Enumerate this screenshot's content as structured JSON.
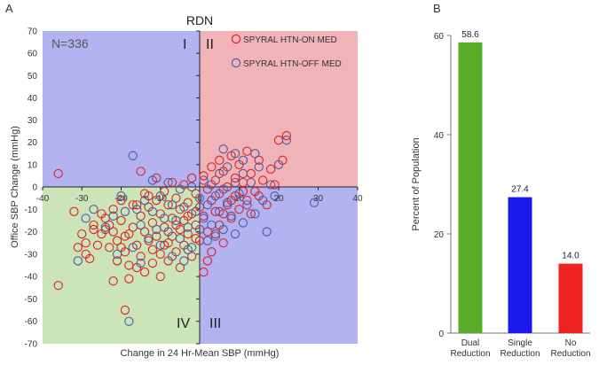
{
  "panels": {
    "a_label": "A",
    "b_label": "B"
  },
  "chart_data": [
    {
      "type": "scatter",
      "title": "RDN",
      "xlabel": "Change in 24 Hr-Mean SBP (mmHg)",
      "ylabel": "Office SBP Change (mmHg)",
      "xlim": [
        -40,
        40
      ],
      "ylim": [
        -70,
        70
      ],
      "xticks": [
        -40,
        -30,
        -20,
        -10,
        0,
        10,
        20,
        30,
        40
      ],
      "yticks": [
        -70,
        -60,
        -50,
        -40,
        -30,
        -20,
        -10,
        0,
        10,
        20,
        30,
        40,
        50,
        60,
        70
      ],
      "xtick_labels": [
        "-40",
        "-30",
        "-20",
        "-10",
        "0",
        "10",
        "20",
        "30",
        "40"
      ],
      "ytick_labels": [
        "-70",
        "-60",
        "-50",
        "-40",
        "-30",
        "-20",
        "-10",
        "0",
        "10",
        "20",
        "30",
        "40",
        "50",
        "60",
        "70"
      ],
      "annotation_n": "N=336",
      "quadrants": [
        {
          "label": "I",
          "color": "#b3b3f2"
        },
        {
          "label": "II",
          "color": "#f0b3b8"
        },
        {
          "label": "III",
          "color": "#b3b3f2"
        },
        {
          "label": "IV",
          "color": "#cbe5b9"
        }
      ],
      "legend": {
        "position": "top-right"
      },
      "series": [
        {
          "name": "SPYRAL HTN-ON MED",
          "color": "#e02020",
          "points": [
            [
              -36,
              6
            ],
            [
              -36,
              -44
            ],
            [
              -32,
              -11
            ],
            [
              -30,
              -21
            ],
            [
              -29,
              -25
            ],
            [
              -29,
              -30
            ],
            [
              -28,
              -32
            ],
            [
              -27,
              -19
            ],
            [
              -26,
              -26
            ],
            [
              -25,
              -12
            ],
            [
              -25,
              -21
            ],
            [
              -24,
              -14
            ],
            [
              -23,
              -17
            ],
            [
              -23,
              -27
            ],
            [
              -22,
              -10
            ],
            [
              -22,
              -20
            ],
            [
              -21,
              -24
            ],
            [
              -21,
              -33
            ],
            [
              -20,
              -6
            ],
            [
              -20,
              -15
            ],
            [
              -19,
              -22
            ],
            [
              -19,
              -29
            ],
            [
              -18,
              -35
            ],
            [
              -18,
              -41
            ],
            [
              -17,
              -8
            ],
            [
              -17,
              -18
            ],
            [
              -16,
              -26
            ],
            [
              -16,
              -36
            ],
            [
              -15,
              7
            ],
            [
              -15,
              -13
            ],
            [
              -15,
              -31
            ],
            [
              -14,
              -3
            ],
            [
              -14,
              -20
            ],
            [
              -14,
              -38
            ],
            [
              -13,
              -9
            ],
            [
              -13,
              -24
            ],
            [
              -12,
              -16
            ],
            [
              -12,
              -28
            ],
            [
              -12,
              -34
            ],
            [
              -11,
              4
            ],
            [
              -11,
              -6
            ],
            [
              -11,
              -22
            ],
            [
              -10,
              -12
            ],
            [
              -10,
              -30
            ],
            [
              -10,
              -40
            ],
            [
              -9,
              -2
            ],
            [
              -9,
              -18
            ],
            [
              -8,
              -8
            ],
            [
              -8,
              -25
            ],
            [
              -8,
              -33
            ],
            [
              -7,
              2
            ],
            [
              -7,
              -14
            ],
            [
              -7,
              -22
            ],
            [
              -6,
              -5
            ],
            [
              -6,
              -29
            ],
            [
              -5,
              -10
            ],
            [
              -5,
              -19
            ],
            [
              -5,
              -36
            ],
            [
              -4,
              1
            ],
            [
              -4,
              -15
            ],
            [
              -4,
              -26
            ],
            [
              -3,
              -7
            ],
            [
              -3,
              -21
            ],
            [
              -2,
              4
            ],
            [
              -2,
              -12
            ],
            [
              -2,
              -31
            ],
            [
              -1,
              -3
            ],
            [
              -1,
              -17
            ],
            [
              0,
              -9
            ],
            [
              0,
              -24
            ],
            [
              1,
              5
            ],
            [
              1,
              -13
            ],
            [
              1,
              -38
            ],
            [
              2,
              -1
            ],
            [
              2,
              -20
            ],
            [
              3,
              9
            ],
            [
              3,
              -6
            ],
            [
              3,
              -29
            ],
            [
              4,
              3
            ],
            [
              4,
              -11
            ],
            [
              5,
              12
            ],
            [
              5,
              -3
            ],
            [
              5,
              -17
            ],
            [
              6,
              7
            ],
            [
              6,
              -25
            ],
            [
              7,
              0
            ],
            [
              7,
              -8
            ],
            [
              8,
              14
            ],
            [
              8,
              -14
            ],
            [
              9,
              4
            ],
            [
              9,
              -4
            ],
            [
              10,
              10
            ],
            [
              10,
              -10
            ],
            [
              11,
              2
            ],
            [
              12,
              -6
            ],
            [
              12,
              16
            ],
            [
              13,
              6
            ],
            [
              14,
              -2
            ],
            [
              15,
              12
            ],
            [
              16,
              3
            ],
            [
              17,
              -8
            ],
            [
              18,
              8
            ],
            [
              19,
              1
            ],
            [
              20,
              21
            ],
            [
              21,
              12
            ],
            [
              22,
              23
            ],
            [
              -19,
              -55
            ],
            [
              -22,
              -42
            ],
            [
              -27,
              -17
            ],
            [
              -31,
              -27
            ],
            [
              -20,
              -27
            ],
            [
              -6,
              -17
            ],
            [
              -3,
              -13
            ],
            [
              2,
              -33
            ],
            [
              -9,
              -26
            ],
            [
              -13,
              -4
            ],
            [
              -16,
              -8
            ],
            [
              -24,
              -19
            ],
            [
              -18,
              -21
            ],
            [
              -1,
              -23
            ],
            [
              4,
              -21
            ],
            [
              6,
              -12
            ],
            [
              8,
              -6
            ],
            [
              11,
              -2
            ],
            [
              13,
              -12
            ],
            [
              15,
              -4
            ]
          ]
        },
        {
          "name": "SPYRAL HTN-OFF MED",
          "color": "#4a5aa8",
          "points": [
            [
              -31,
              -33
            ],
            [
              -29,
              -14
            ],
            [
              -27,
              -10
            ],
            [
              -24,
              -18
            ],
            [
              -22,
              -13
            ],
            [
              -21,
              -30
            ],
            [
              -20,
              -4
            ],
            [
              -19,
              -11
            ],
            [
              -18,
              -60
            ],
            [
              -17,
              14
            ],
            [
              -17,
              -27
            ],
            [
              -16,
              -10
            ],
            [
              -15,
              -17
            ],
            [
              -14,
              -6
            ],
            [
              -13,
              -23
            ],
            [
              -12,
              3
            ],
            [
              -12,
              -11
            ],
            [
              -11,
              -19
            ],
            [
              -10,
              -4
            ],
            [
              -10,
              -26
            ],
            [
              -9,
              -14
            ],
            [
              -8,
              2
            ],
            [
              -8,
              -20
            ],
            [
              -7,
              -8
            ],
            [
              -7,
              -31
            ],
            [
              -6,
              -15
            ],
            [
              -5,
              -1
            ],
            [
              -5,
              -23
            ],
            [
              -4,
              -9
            ],
            [
              -4,
              -33
            ],
            [
              -3,
              -18
            ],
            [
              -2,
              0
            ],
            [
              -2,
              -27
            ],
            [
              -1,
              -11
            ],
            [
              0,
              -5
            ],
            [
              0,
              -19
            ],
            [
              1,
              3
            ],
            [
              1,
              -14
            ],
            [
              2,
              -8
            ],
            [
              2,
              -24
            ],
            [
              3,
              1
            ],
            [
              3,
              -17
            ],
            [
              4,
              -4
            ],
            [
              4,
              -22
            ],
            [
              5,
              6
            ],
            [
              5,
              -11
            ],
            [
              6,
              -1
            ],
            [
              6,
              -19
            ],
            [
              7,
              9
            ],
            [
              7,
              -7
            ],
            [
              8,
              -13
            ],
            [
              9,
              2
            ],
            [
              9,
              -21
            ],
            [
              10,
              -3
            ],
            [
              11,
              6
            ],
            [
              11,
              -16
            ],
            [
              12,
              -8
            ],
            [
              13,
              2
            ],
            [
              14,
              -12
            ],
            [
              15,
              9
            ],
            [
              16,
              -6
            ],
            [
              17,
              -20
            ],
            [
              18,
              1
            ],
            [
              19,
              -4
            ],
            [
              20,
              10
            ],
            [
              22,
              21
            ],
            [
              29,
              -7
            ],
            [
              6,
              17
            ],
            [
              9,
              15
            ],
            [
              11,
              12
            ],
            [
              14,
              15
            ],
            [
              -15,
              -34
            ],
            [
              -3,
              -28
            ]
          ]
        }
      ]
    },
    {
      "type": "bar",
      "categories": [
        "Dual Reduction",
        "Single Reduction",
        "No Reduction"
      ],
      "category_lines": [
        [
          "Dual",
          "Reduction"
        ],
        [
          "Single",
          "Reduction"
        ],
        [
          "No",
          "Reduction"
        ]
      ],
      "values": [
        58.6,
        27.4,
        14.0
      ],
      "value_labels": [
        "58.6",
        "27.4",
        "14.0"
      ],
      "colors": [
        "#5aac2a",
        "#1a1aee",
        "#ee2222"
      ],
      "ylabel": "Percent of Population",
      "xlabel": "",
      "ylim": [
        0,
        60
      ],
      "yticks": [
        0,
        20,
        40,
        60
      ],
      "ytick_labels": [
        "0",
        "20",
        "40",
        "60"
      ]
    }
  ]
}
